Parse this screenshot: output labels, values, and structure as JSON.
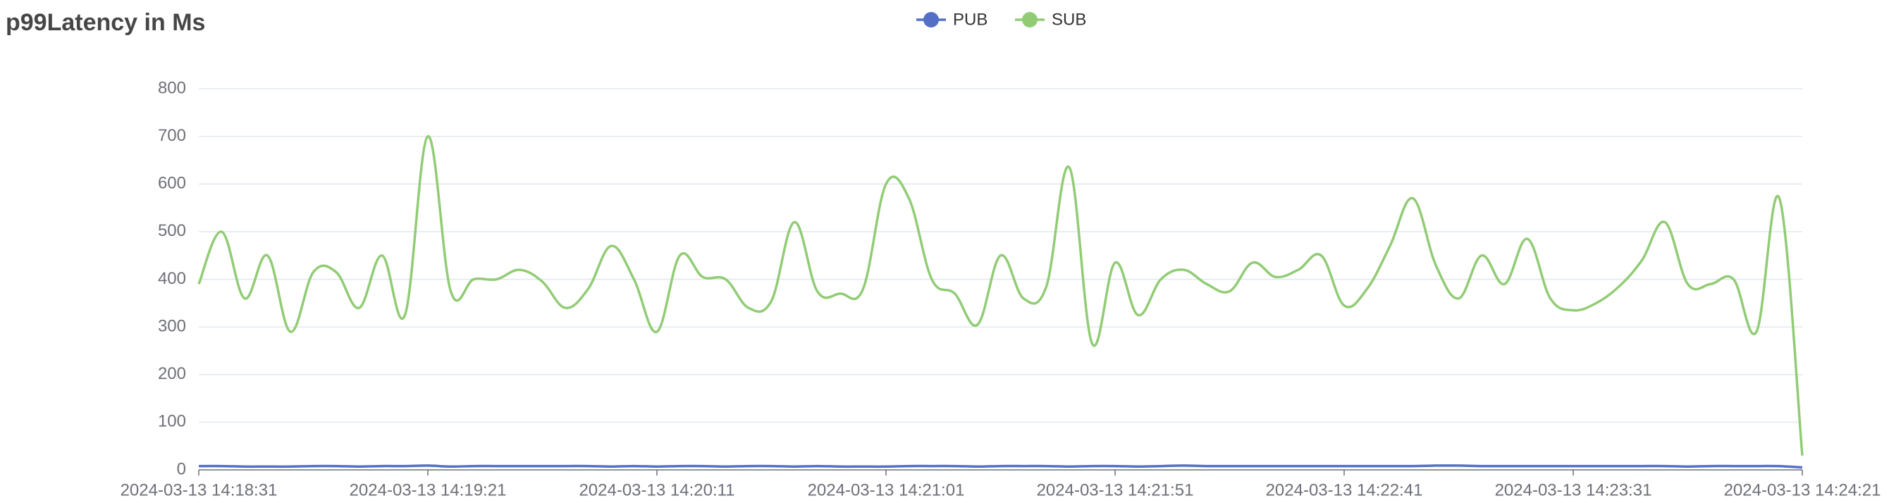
{
  "chart_data": {
    "type": "line",
    "title": "p99Latency in Ms",
    "categories": [
      "2024-03-13 14:18:31",
      "2024-03-13 14:18:36",
      "2024-03-13 14:18:41",
      "2024-03-13 14:18:46",
      "2024-03-13 14:18:51",
      "2024-03-13 14:18:56",
      "2024-03-13 14:19:01",
      "2024-03-13 14:19:06",
      "2024-03-13 14:19:11",
      "2024-03-13 14:19:16",
      "2024-03-13 14:19:21",
      "2024-03-13 14:19:26",
      "2024-03-13 14:19:31",
      "2024-03-13 14:19:36",
      "2024-03-13 14:19:41",
      "2024-03-13 14:19:46",
      "2024-03-13 14:19:51",
      "2024-03-13 14:19:56",
      "2024-03-13 14:20:01",
      "2024-03-13 14:20:06",
      "2024-03-13 14:20:11",
      "2024-03-13 14:20:16",
      "2024-03-13 14:20:21",
      "2024-03-13 14:20:26",
      "2024-03-13 14:20:31",
      "2024-03-13 14:20:36",
      "2024-03-13 14:20:41",
      "2024-03-13 14:20:46",
      "2024-03-13 14:20:51",
      "2024-03-13 14:20:56",
      "2024-03-13 14:21:01",
      "2024-03-13 14:21:06",
      "2024-03-13 14:21:11",
      "2024-03-13 14:21:16",
      "2024-03-13 14:21:21",
      "2024-03-13 14:21:26",
      "2024-03-13 14:21:31",
      "2024-03-13 14:21:36",
      "2024-03-13 14:21:41",
      "2024-03-13 14:21:46",
      "2024-03-13 14:21:51",
      "2024-03-13 14:21:56",
      "2024-03-13 14:22:01",
      "2024-03-13 14:22:06",
      "2024-03-13 14:22:11",
      "2024-03-13 14:22:16",
      "2024-03-13 14:22:21",
      "2024-03-13 14:22:26",
      "2024-03-13 14:22:31",
      "2024-03-13 14:22:36",
      "2024-03-13 14:22:41",
      "2024-03-13 14:22:46",
      "2024-03-13 14:22:51",
      "2024-03-13 14:22:56",
      "2024-03-13 14:23:01",
      "2024-03-13 14:23:06",
      "2024-03-13 14:23:11",
      "2024-03-13 14:23:16",
      "2024-03-13 14:23:21",
      "2024-03-13 14:23:26",
      "2024-03-13 14:23:31",
      "2024-03-13 14:23:36",
      "2024-03-13 14:23:41",
      "2024-03-13 14:23:46",
      "2024-03-13 14:23:51",
      "2024-03-13 14:23:56",
      "2024-03-13 14:24:01",
      "2024-03-13 14:24:06",
      "2024-03-13 14:24:11",
      "2024-03-13 14:24:16",
      "2024-03-13 14:24:21"
    ],
    "series": [
      {
        "name": "PUB",
        "color": "#5470c6",
        "values": [
          8,
          8,
          7,
          7,
          7,
          8,
          8,
          7,
          8,
          8,
          9,
          7,
          8,
          8,
          8,
          8,
          8,
          8,
          7,
          8,
          7,
          8,
          8,
          7,
          8,
          8,
          7,
          8,
          7,
          7,
          7,
          8,
          8,
          8,
          7,
          8,
          8,
          8,
          7,
          8,
          8,
          7,
          8,
          9,
          8,
          8,
          8,
          8,
          8,
          8,
          8,
          8,
          8,
          8,
          9,
          9,
          8,
          8,
          8,
          8,
          8,
          8,
          8,
          8,
          8,
          7,
          8,
          8,
          8,
          8,
          5
        ]
      },
      {
        "name": "SUB",
        "color": "#91cc75",
        "values": [
          390,
          500,
          360,
          450,
          290,
          415,
          415,
          340,
          450,
          325,
          700,
          375,
          400,
          400,
          420,
          395,
          340,
          380,
          470,
          400,
          290,
          450,
          405,
          400,
          340,
          355,
          520,
          375,
          370,
          380,
          600,
          570,
          400,
          370,
          305,
          450,
          360,
          385,
          635,
          265,
          435,
          325,
          400,
          420,
          390,
          375,
          435,
          405,
          420,
          450,
          345,
          380,
          470,
          570,
          430,
          360,
          450,
          390,
          485,
          360,
          335,
          350,
          385,
          440,
          520,
          390,
          390,
          400,
          290,
          570,
          30
        ]
      }
    ],
    "ylim": [
      0,
      800
    ],
    "yticks": [
      0,
      100,
      200,
      300,
      400,
      500,
      600,
      700,
      800
    ],
    "grid": true,
    "legend": "top"
  }
}
